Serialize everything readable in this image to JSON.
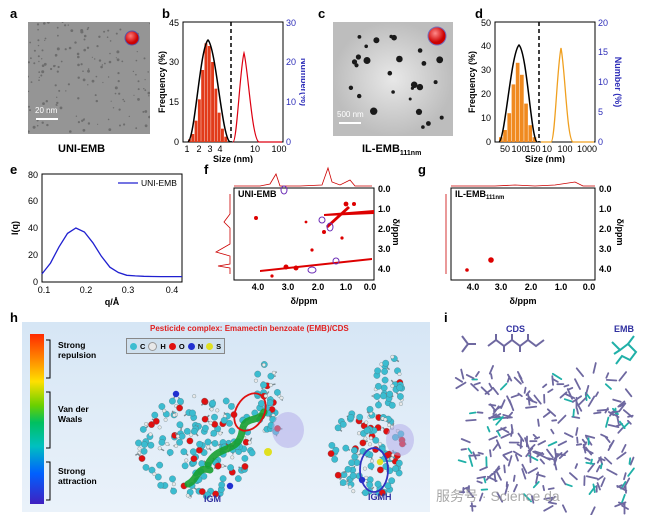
{
  "panels": {
    "a": {
      "label": "a",
      "scale_bar": "20 nm",
      "caption": "UNI-EMB"
    },
    "b": {
      "label": "b",
      "ylabel_left": "Frequency (%)",
      "ylabel_right": "Number(%)",
      "xlabel": "Size (nm)"
    },
    "c": {
      "label": "c",
      "scale_bar": "500 nm",
      "caption_main": "IL-EMB",
      "caption_sub": "111nm"
    },
    "d": {
      "label": "d",
      "ylabel_left": "Frequency (%)",
      "ylabel_right": "Number (%)",
      "xlabel": "Size (nm)"
    },
    "e": {
      "label": "e",
      "ylabel": "I(q)",
      "xlabel": "q/Å",
      "legend": "UNI-EMB"
    },
    "f": {
      "label": "f",
      "title": "UNI-EMB",
      "xlabel": "δ/ppm",
      "ylabel": "δ/ppm"
    },
    "g": {
      "label": "g",
      "title_main": "IL-EMB",
      "title_sub": "111nm",
      "xlabel": "δ/ppm",
      "ylabel": "δ/ppm"
    },
    "h": {
      "label": "h",
      "title": "Pesticide complex: Emamectin benzoate (EMB)/CDS",
      "scale_labels": [
        "Strong repulsion",
        "Van der Waals",
        "Strong attraction"
      ],
      "atoms": [
        "C",
        "H",
        "O",
        "N",
        "S"
      ],
      "left_model": "IGM",
      "right_model": "IGMH"
    },
    "i": {
      "label": "i",
      "cds_label": "CDS",
      "emb_label": "EMB"
    }
  },
  "watermark": "服务号 · Science da",
  "chart_data": [
    {
      "id": "b",
      "type": "bar",
      "title": "",
      "xticks_left": [
        "1",
        "2",
        "3",
        "4"
      ],
      "xticks_right": [
        "10",
        "100"
      ],
      "yticks_left": [
        0,
        15,
        30,
        45
      ],
      "yticks_right": [
        0,
        10,
        20,
        30
      ],
      "ylim_left": [
        0,
        45
      ],
      "ylim_right": [
        0,
        30
      ],
      "series": [
        {
          "x": [
            1.8,
            2.0,
            2.2,
            2.4,
            2.6,
            2.8,
            3.0,
            3.2,
            3.4,
            3.6,
            3.8,
            4.0
          ],
          "values": [
            1,
            3,
            8,
            16,
            27,
            37,
            36,
            30,
            20,
            11,
            5,
            2
          ]
        }
      ]
    },
    {
      "id": "d",
      "type": "bar",
      "title": "",
      "xticks_left": [
        "50",
        "100",
        "150"
      ],
      "xticks_right": [
        "10",
        "100",
        "1000"
      ],
      "yticks_left": [
        0,
        10,
        20,
        30,
        40,
        50
      ],
      "yticks_right": [
        0,
        5,
        10,
        15,
        20
      ],
      "ylim_left": [
        0,
        50
      ],
      "ylim_right": [
        0,
        20
      ],
      "series": [
        {
          "x": [
            60,
            70,
            80,
            90,
            100,
            110,
            120,
            130,
            140
          ],
          "values": [
            2,
            5,
            12,
            24,
            33,
            28,
            16,
            7,
            2
          ]
        }
      ]
    },
    {
      "id": "e",
      "type": "line",
      "title": "",
      "xlabel": "q/Å",
      "ylabel": "I(q)",
      "xticks": [
        "0.1",
        "0.2",
        "0.3",
        "0.4"
      ],
      "yticks": [
        0,
        20,
        40,
        60,
        80
      ],
      "xlim": [
        0.1,
        0.43
      ],
      "ylim": [
        0,
        80
      ],
      "series": [
        {
          "name": "UNI-EMB",
          "x": [
            0.1,
            0.12,
            0.14,
            0.16,
            0.18,
            0.2,
            0.22,
            0.24,
            0.26,
            0.28,
            0.3,
            0.32,
            0.34,
            0.36,
            0.38,
            0.4,
            0.42,
            0.43
          ],
          "values": [
            6,
            14,
            26,
            36,
            40,
            37,
            29,
            19,
            11,
            7,
            5,
            4.5,
            4.2,
            4.1,
            4,
            4,
            4,
            4
          ]
        }
      ]
    },
    {
      "id": "f",
      "type": "scatter",
      "title": "UNI-EMB",
      "xticks": [
        "4.0",
        "3.0",
        "2.0",
        "1.0",
        "0.0"
      ],
      "yticks": [
        "0.0",
        "1.0",
        "2.0",
        "3.0",
        "4.0"
      ],
      "xlim": [
        4.6,
        -0.2
      ],
      "ylim": [
        -0.2,
        4.5
      ]
    },
    {
      "id": "g",
      "type": "scatter",
      "title": "IL-EMB111nm",
      "xticks": [
        "4.0",
        "3.0",
        "2.0",
        "1.0",
        "0.0"
      ],
      "yticks": [
        "0.0",
        "1.0",
        "2.0",
        "3.0",
        "4.0"
      ],
      "xlim": [
        4.6,
        -0.2
      ],
      "ylim": [
        -0.2,
        4.5
      ]
    }
  ]
}
